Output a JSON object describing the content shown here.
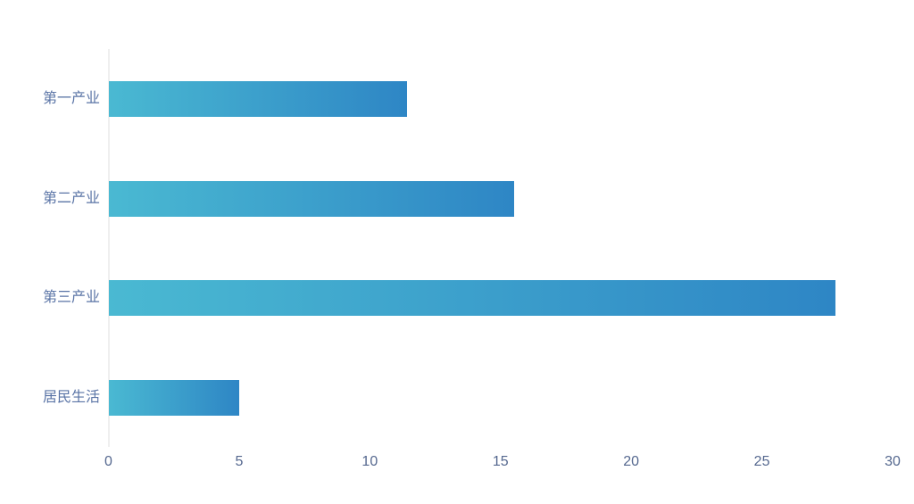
{
  "chart_data": {
    "type": "bar",
    "orientation": "horizontal",
    "title": "",
    "xlabel": "",
    "ylabel": "",
    "categories": [
      "第一产业",
      "第二产业",
      "第三产业",
      "居民生活"
    ],
    "values": [
      11.4,
      15.5,
      27.8,
      5
    ],
    "xlim": [
      0,
      30
    ],
    "x_ticks": [
      0,
      5,
      10,
      15,
      20,
      25,
      30
    ],
    "grid": false,
    "legend": false,
    "colors": {
      "bar_gradient_start": "#4ab9d2",
      "bar_gradient_end": "#2e86c5",
      "axis_line": "#efefef",
      "category_label": "#5a74a6",
      "tick_label": "#55688f",
      "background": "#ffffff"
    }
  }
}
